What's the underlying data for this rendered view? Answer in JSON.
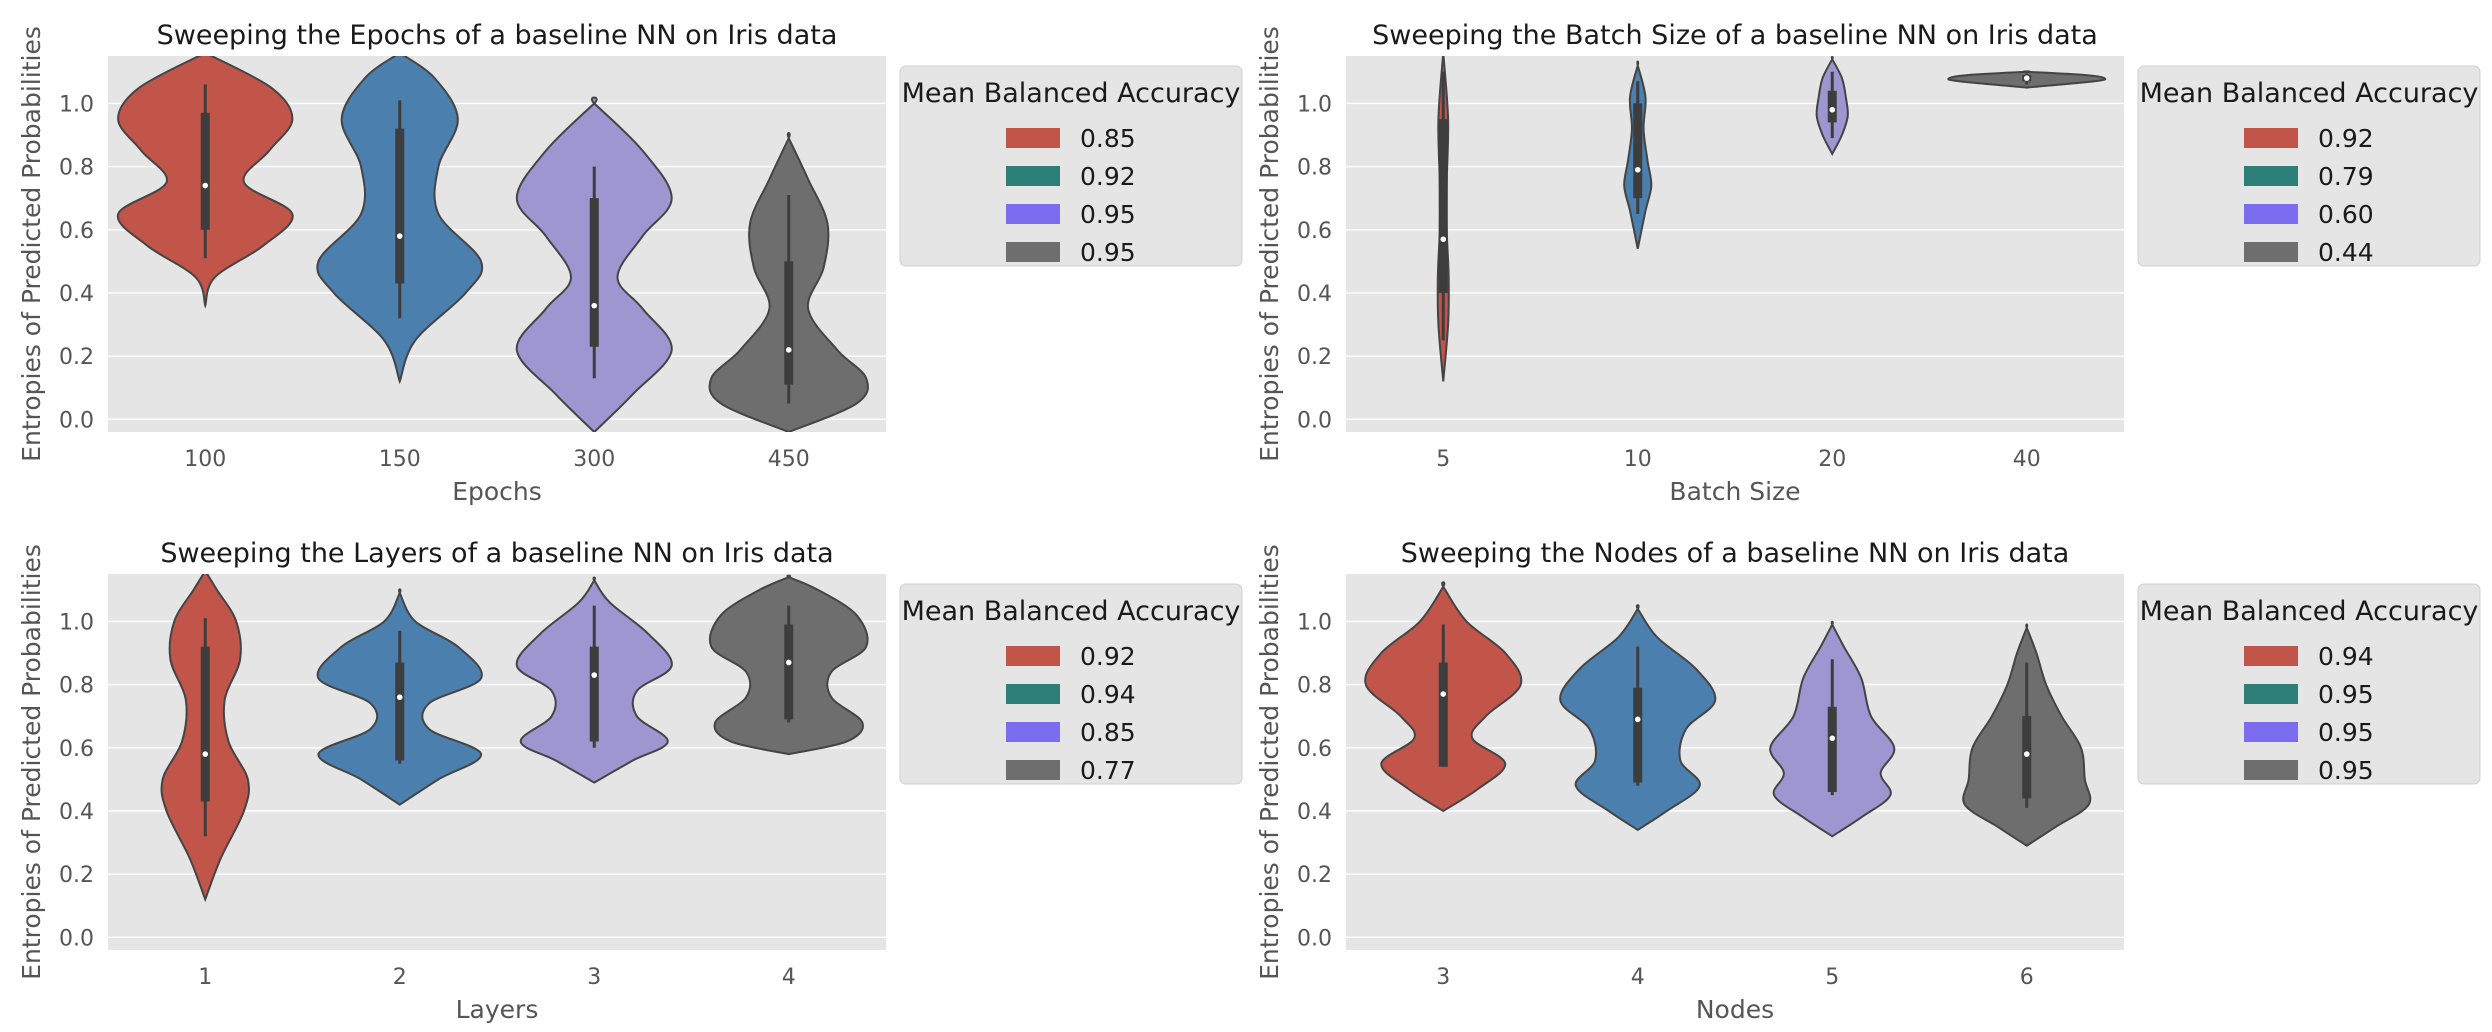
{
  "colors": [
    "#c1554a",
    "#4a7fae",
    "#9d96d0",
    "#6e6e6e"
  ],
  "legend_swatch_colors": [
    "#c1554a",
    "#2f7f79",
    "#7b6cf0",
    "#6e6e6e"
  ],
  "chart_data": [
    {
      "type": "violin",
      "title": "Sweeping the Epochs of a baseline NN on Iris data",
      "xlabel": "Epochs",
      "ylabel": "Entropies of Predicted Probabilities",
      "ylim": [
        -0.04,
        1.15
      ],
      "yticks": [
        "0.0",
        "0.2",
        "0.4",
        "0.6",
        "0.8",
        "1.0"
      ],
      "categories": [
        "100",
        "150",
        "300",
        "450"
      ],
      "legend_title": "Mean Balanced Accuracy",
      "legend_labels": [
        "0.85",
        "0.92",
        "0.95",
        "0.95"
      ],
      "violins": [
        {
          "ymin": 0.36,
          "ymax": 1.16,
          "profile": [
            [
              0.36,
              0
            ],
            [
              0.45,
              0.05
            ],
            [
              0.55,
              0.3
            ],
            [
              0.65,
              0.45
            ],
            [
              0.75,
              0.2
            ],
            [
              0.85,
              0.33
            ],
            [
              0.95,
              0.45
            ],
            [
              1.05,
              0.34
            ],
            [
              1.16,
              0
            ]
          ],
          "q1": 0.6,
          "median": 0.74,
          "q3": 0.97,
          "whisker_low": 0.51,
          "whisker_high": 1.06
        },
        {
          "ymin": 0.12,
          "ymax": 1.16,
          "profile": [
            [
              0.12,
              0
            ],
            [
              0.25,
              0.08
            ],
            [
              0.4,
              0.34
            ],
            [
              0.5,
              0.42
            ],
            [
              0.65,
              0.2
            ],
            [
              0.8,
              0.2
            ],
            [
              0.95,
              0.3
            ],
            [
              1.08,
              0.18
            ],
            [
              1.16,
              0
            ]
          ],
          "q1": 0.43,
          "median": 0.58,
          "q3": 0.92,
          "whisker_low": 0.32,
          "whisker_high": 1.01
        },
        {
          "ymin": -0.04,
          "ymax": 1.0,
          "profile": [
            [
              -0.04,
              0
            ],
            [
              0.08,
              0.2
            ],
            [
              0.22,
              0.4
            ],
            [
              0.35,
              0.25
            ],
            [
              0.45,
              0.12
            ],
            [
              0.58,
              0.25
            ],
            [
              0.7,
              0.4
            ],
            [
              0.85,
              0.25
            ],
            [
              1.0,
              0
            ]
          ],
          "q1": 0.23,
          "median": 0.36,
          "q3": 0.7,
          "whisker_low": 0.13,
          "whisker_high": 0.8
        },
        {
          "ymin": -0.04,
          "ymax": 0.89,
          "profile": [
            [
              -0.04,
              0
            ],
            [
              0.05,
              0.35
            ],
            [
              0.13,
              0.4
            ],
            [
              0.22,
              0.25
            ],
            [
              0.35,
              0.1
            ],
            [
              0.48,
              0.18
            ],
            [
              0.62,
              0.2
            ],
            [
              0.76,
              0.1
            ],
            [
              0.89,
              0
            ]
          ],
          "q1": 0.11,
          "median": 0.22,
          "q3": 0.5,
          "whisker_low": 0.05,
          "whisker_high": 0.71
        }
      ]
    },
    {
      "type": "violin",
      "title": "Sweeping the Batch Size of a baseline NN on Iris data",
      "xlabel": "Batch Size",
      "ylabel": "Entropies of Predicted Probabilities",
      "ylim": [
        -0.04,
        1.15
      ],
      "yticks": [
        "0.0",
        "0.2",
        "0.4",
        "0.6",
        "0.8",
        "1.0"
      ],
      "categories": [
        "5",
        "10",
        "20",
        "40"
      ],
      "legend_title": "Mean Balanced Accuracy",
      "legend_labels": [
        "0.92",
        "0.79",
        "0.60",
        "0.44"
      ],
      "violins": [
        {
          "ymin": 0.12,
          "ymax": 1.16,
          "profile": [
            [
              0.12,
              0
            ],
            [
              0.3,
              0.025
            ],
            [
              0.45,
              0.028
            ],
            [
              0.6,
              0.018
            ],
            [
              0.75,
              0.018
            ],
            [
              0.95,
              0.025
            ],
            [
              1.16,
              0
            ]
          ],
          "q1": 0.4,
          "median": 0.57,
          "q3": 0.95,
          "whisker_low": 0.25,
          "whisker_high": 1.1
        },
        {
          "ymin": 0.54,
          "ymax": 1.12,
          "profile": [
            [
              0.54,
              0
            ],
            [
              0.66,
              0.04
            ],
            [
              0.74,
              0.07
            ],
            [
              0.82,
              0.05
            ],
            [
              0.92,
              0.03
            ],
            [
              1.02,
              0.04
            ],
            [
              1.12,
              0
            ]
          ],
          "q1": 0.7,
          "median": 0.79,
          "q3": 1.0,
          "whisker_low": 0.65,
          "whisker_high": 1.07
        },
        {
          "ymin": 0.84,
          "ymax": 1.14,
          "profile": [
            [
              0.84,
              0
            ],
            [
              0.9,
              0.05
            ],
            [
              0.96,
              0.08
            ],
            [
              1.02,
              0.07
            ],
            [
              1.08,
              0.05
            ],
            [
              1.14,
              0
            ]
          ],
          "q1": 0.94,
          "median": 0.98,
          "q3": 1.04,
          "whisker_low": 0.89,
          "whisker_high": 1.1
        },
        {
          "ymin": 1.05,
          "ymax": 1.1,
          "profile": [
            [
              1.05,
              0
            ],
            [
              1.07,
              0.35
            ],
            [
              1.08,
              0.4
            ],
            [
              1.09,
              0.3
            ],
            [
              1.1,
              0
            ]
          ],
          "q1": 1.07,
          "median": 1.08,
          "q3": 1.09,
          "whisker_low": 1.06,
          "whisker_high": 1.095
        }
      ]
    },
    {
      "type": "violin",
      "title": "Sweeping the Layers of a baseline NN on Iris data",
      "xlabel": "Layers",
      "ylabel": "Entropies of Predicted Probabilities",
      "ylim": [
        -0.04,
        1.15
      ],
      "yticks": [
        "0.0",
        "0.2",
        "0.4",
        "0.6",
        "0.8",
        "1.0"
      ],
      "categories": [
        "1",
        "2",
        "3",
        "4"
      ],
      "legend_title": "Mean Balanced Accuracy",
      "legend_labels": [
        "0.92",
        "0.94",
        "0.85",
        "0.77"
      ],
      "violins": [
        {
          "ymin": 0.12,
          "ymax": 1.16,
          "profile": [
            [
              0.12,
              0
            ],
            [
              0.25,
              0.08
            ],
            [
              0.4,
              0.2
            ],
            [
              0.5,
              0.22
            ],
            [
              0.62,
              0.12
            ],
            [
              0.75,
              0.1
            ],
            [
              0.88,
              0.18
            ],
            [
              1.0,
              0.16
            ],
            [
              1.1,
              0.06
            ],
            [
              1.16,
              0
            ]
          ],
          "q1": 0.43,
          "median": 0.58,
          "q3": 0.92,
          "whisker_low": 0.32,
          "whisker_high": 1.01
        },
        {
          "ymin": 0.42,
          "ymax": 1.09,
          "profile": [
            [
              0.42,
              0
            ],
            [
              0.5,
              0.2
            ],
            [
              0.58,
              0.42
            ],
            [
              0.66,
              0.15
            ],
            [
              0.74,
              0.15
            ],
            [
              0.82,
              0.42
            ],
            [
              0.92,
              0.3
            ],
            [
              1.0,
              0.08
            ],
            [
              1.09,
              0
            ]
          ],
          "q1": 0.56,
          "median": 0.76,
          "q3": 0.87,
          "whisker_low": 0.55,
          "whisker_high": 0.97
        },
        {
          "ymin": 0.49,
          "ymax": 1.13,
          "profile": [
            [
              0.49,
              0
            ],
            [
              0.56,
              0.2
            ],
            [
              0.62,
              0.38
            ],
            [
              0.7,
              0.22
            ],
            [
              0.78,
              0.22
            ],
            [
              0.86,
              0.4
            ],
            [
              0.96,
              0.28
            ],
            [
              1.06,
              0.08
            ],
            [
              1.13,
              0
            ]
          ],
          "q1": 0.62,
          "median": 0.83,
          "q3": 0.92,
          "whisker_low": 0.6,
          "whisker_high": 1.05
        },
        {
          "ymin": 0.58,
          "ymax": 1.14,
          "profile": [
            [
              0.58,
              0
            ],
            [
              0.62,
              0.3
            ],
            [
              0.68,
              0.38
            ],
            [
              0.76,
              0.22
            ],
            [
              0.84,
              0.22
            ],
            [
              0.92,
              0.4
            ],
            [
              1.02,
              0.35
            ],
            [
              1.1,
              0.15
            ],
            [
              1.14,
              0
            ]
          ],
          "q1": 0.69,
          "median": 0.87,
          "q3": 0.99,
          "whisker_low": 0.68,
          "whisker_high": 1.05
        }
      ]
    },
    {
      "type": "violin",
      "title": "Sweeping the Nodes of a baseline NN on Iris data",
      "xlabel": "Nodes",
      "ylabel": "Entropies of Predicted Probabilities",
      "ylim": [
        -0.04,
        1.15
      ],
      "yticks": [
        "0.0",
        "0.2",
        "0.4",
        "0.6",
        "0.8",
        "1.0"
      ],
      "categories": [
        "3",
        "4",
        "5",
        "6"
      ],
      "legend_title": "Mean Balanced Accuracy",
      "legend_labels": [
        "0.94",
        "0.95",
        "0.95",
        "0.95"
      ],
      "violins": [
        {
          "ymin": 0.4,
          "ymax": 1.11,
          "profile": [
            [
              0.4,
              0
            ],
            [
              0.47,
              0.18
            ],
            [
              0.55,
              0.32
            ],
            [
              0.63,
              0.15
            ],
            [
              0.7,
              0.22
            ],
            [
              0.8,
              0.4
            ],
            [
              0.9,
              0.32
            ],
            [
              1.0,
              0.12
            ],
            [
              1.11,
              0
            ]
          ],
          "q1": 0.54,
          "median": 0.77,
          "q3": 0.87,
          "whisker_low": 0.54,
          "whisker_high": 0.99
        },
        {
          "ymin": 0.34,
          "ymax": 1.04,
          "profile": [
            [
              0.34,
              0
            ],
            [
              0.4,
              0.15
            ],
            [
              0.48,
              0.32
            ],
            [
              0.56,
              0.22
            ],
            [
              0.66,
              0.25
            ],
            [
              0.75,
              0.4
            ],
            [
              0.85,
              0.3
            ],
            [
              0.95,
              0.1
            ],
            [
              1.04,
              0
            ]
          ],
          "q1": 0.49,
          "median": 0.69,
          "q3": 0.79,
          "whisker_low": 0.48,
          "whisker_high": 0.92
        },
        {
          "ymin": 0.32,
          "ymax": 0.99,
          "profile": [
            [
              0.32,
              0
            ],
            [
              0.38,
              0.15
            ],
            [
              0.45,
              0.3
            ],
            [
              0.52,
              0.25
            ],
            [
              0.6,
              0.32
            ],
            [
              0.7,
              0.2
            ],
            [
              0.82,
              0.15
            ],
            [
              0.92,
              0.06
            ],
            [
              0.99,
              0
            ]
          ],
          "q1": 0.46,
          "median": 0.63,
          "q3": 0.73,
          "whisker_low": 0.45,
          "whisker_high": 0.88
        },
        {
          "ymin": 0.29,
          "ymax": 0.98,
          "profile": [
            [
              0.29,
              0
            ],
            [
              0.35,
              0.15
            ],
            [
              0.42,
              0.32
            ],
            [
              0.5,
              0.3
            ],
            [
              0.6,
              0.28
            ],
            [
              0.7,
              0.18
            ],
            [
              0.8,
              0.1
            ],
            [
              0.9,
              0.05
            ],
            [
              0.98,
              0
            ]
          ],
          "q1": 0.44,
          "median": 0.58,
          "q3": 0.7,
          "whisker_low": 0.41,
          "whisker_high": 0.87
        }
      ]
    }
  ]
}
